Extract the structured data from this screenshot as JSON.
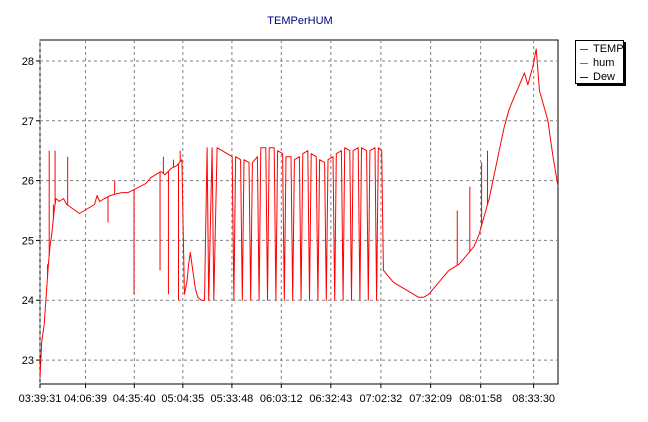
{
  "chart_data": {
    "type": "line",
    "title": "TEMPerHUM",
    "xlabel": "",
    "ylabel": "",
    "x_tick_labels": [
      "03:39:31",
      "04:06:39",
      "04:35:40",
      "05:04:35",
      "05:33:48",
      "06:03:12",
      "06:32:43",
      "07:02:32",
      "07:32:09",
      "08:01:58",
      "08:33:30"
    ],
    "x_range": [
      "03:39:31",
      "08:48:00"
    ],
    "y_ticks": [
      23,
      24,
      25,
      26,
      27,
      28
    ],
    "ylim": [
      22.6,
      28.35
    ],
    "grid": true,
    "legend_position": "right",
    "series": [
      {
        "name": "TEMP",
        "color": "#ff0000",
        "points": [
          [
            "03:39:31",
            22.7
          ],
          [
            "03:40:30",
            23.3
          ],
          [
            "03:42:00",
            23.6
          ],
          [
            "03:43:30",
            24.2
          ],
          [
            "03:44:30",
            24.6
          ],
          [
            "03:45:30",
            24.9
          ],
          [
            "03:46:30",
            25.1
          ],
          [
            "03:48:00",
            25.5
          ],
          [
            "03:49:00",
            25.7
          ],
          [
            "03:51:00",
            25.65
          ],
          [
            "03:53:30",
            25.7
          ],
          [
            "03:55:30",
            25.6
          ],
          [
            "03:58:00",
            25.55
          ],
          [
            "04:00:30",
            25.5
          ],
          [
            "04:03:00",
            25.45
          ],
          [
            "04:06:00",
            25.5
          ],
          [
            "04:09:00",
            25.55
          ],
          [
            "04:12:00",
            25.6
          ],
          [
            "04:13:30",
            25.75
          ],
          [
            "04:15:00",
            25.65
          ],
          [
            "04:18:00",
            25.7
          ],
          [
            "04:21:30",
            25.75
          ],
          [
            "04:25:00",
            25.78
          ],
          [
            "04:28:30",
            25.8
          ],
          [
            "04:32:00",
            25.8
          ],
          [
            "04:35:30",
            25.85
          ],
          [
            "04:39:00",
            25.9
          ],
          [
            "04:42:30",
            25.95
          ],
          [
            "04:45:30",
            26.05
          ],
          [
            "04:48:30",
            26.1
          ],
          [
            "04:51:30",
            26.15
          ],
          [
            "04:54:00",
            26.1
          ],
          [
            "04:57:30",
            26.2
          ],
          [
            "05:01:00",
            26.25
          ],
          [
            "05:04:00",
            26.35
          ],
          [
            "05:05:30",
            24.1
          ],
          [
            "05:07:00",
            24.3
          ],
          [
            "05:08:00",
            24.6
          ],
          [
            "05:09:00",
            24.8
          ],
          [
            "05:10:00",
            24.6
          ],
          [
            "05:11:00",
            24.4
          ],
          [
            "05:12:00",
            24.2
          ],
          [
            "05:13:30",
            24.05
          ],
          [
            "05:15:30",
            24.0
          ],
          [
            "05:17:30",
            24.0
          ],
          [
            "05:19:00",
            26.55
          ],
          [
            "05:20:00",
            24.0
          ],
          [
            "05:22:00",
            26.55
          ],
          [
            "05:23:00",
            24.0
          ],
          [
            "05:25:00",
            26.55
          ],
          [
            "05:28:00",
            26.5
          ],
          [
            "05:31:00",
            26.45
          ],
          [
            "05:34:00",
            26.4
          ],
          [
            "05:35:00",
            24.0
          ],
          [
            "05:36:00",
            26.4
          ],
          [
            "05:39:00",
            26.35
          ],
          [
            "05:40:00",
            24.0
          ],
          [
            "05:41:00",
            26.35
          ],
          [
            "05:44:00",
            26.3
          ],
          [
            "05:45:00",
            24.0
          ],
          [
            "05:46:00",
            26.3
          ],
          [
            "05:49:00",
            26.4
          ],
          [
            "05:50:00",
            24.0
          ],
          [
            "05:51:00",
            26.55
          ],
          [
            "05:54:00",
            26.55
          ],
          [
            "05:55:00",
            24.0
          ],
          [
            "05:56:00",
            26.55
          ],
          [
            "05:59:00",
            26.55
          ],
          [
            "06:00:00",
            24.0
          ],
          [
            "06:01:00",
            26.5
          ],
          [
            "06:04:00",
            26.45
          ],
          [
            "06:05:00",
            24.0
          ],
          [
            "06:06:00",
            26.4
          ],
          [
            "06:09:00",
            26.4
          ],
          [
            "06:10:00",
            24.0
          ],
          [
            "06:11:00",
            26.35
          ],
          [
            "06:14:00",
            26.4
          ],
          [
            "06:15:00",
            24.0
          ],
          [
            "06:16:00",
            26.45
          ],
          [
            "06:19:00",
            26.5
          ],
          [
            "06:20:00",
            24.0
          ],
          [
            "06:21:00",
            26.45
          ],
          [
            "06:24:00",
            26.4
          ],
          [
            "06:25:00",
            24.0
          ],
          [
            "06:26:00",
            26.35
          ],
          [
            "06:29:00",
            26.3
          ],
          [
            "06:30:00",
            24.0
          ],
          [
            "06:31:00",
            26.35
          ],
          [
            "06:34:00",
            26.4
          ],
          [
            "06:35:00",
            24.0
          ],
          [
            "06:36:00",
            26.45
          ],
          [
            "06:39:00",
            26.5
          ],
          [
            "06:40:00",
            24.0
          ],
          [
            "06:41:00",
            26.55
          ],
          [
            "06:44:00",
            26.5
          ],
          [
            "06:45:00",
            24.0
          ],
          [
            "06:46:00",
            26.5
          ],
          [
            "06:49:00",
            26.55
          ],
          [
            "06:50:00",
            24.0
          ],
          [
            "06:51:00",
            26.55
          ],
          [
            "06:54:00",
            26.5
          ],
          [
            "06:55:00",
            24.0
          ],
          [
            "06:56:00",
            26.5
          ],
          [
            "06:59:00",
            26.55
          ],
          [
            "07:00:00",
            24.0
          ],
          [
            "07:01:00",
            26.55
          ],
          [
            "07:03:00",
            26.5
          ],
          [
            "07:04:00",
            24.5
          ],
          [
            "07:07:00",
            24.4
          ],
          [
            "07:10:00",
            24.3
          ],
          [
            "07:13:00",
            24.25
          ],
          [
            "07:16:00",
            24.2
          ],
          [
            "07:19:00",
            24.15
          ],
          [
            "07:22:00",
            24.1
          ],
          [
            "07:25:00",
            24.05
          ],
          [
            "07:28:00",
            24.05
          ],
          [
            "07:31:00",
            24.1
          ],
          [
            "07:34:00",
            24.2
          ],
          [
            "07:37:00",
            24.3
          ],
          [
            "07:40:00",
            24.4
          ],
          [
            "07:43:00",
            24.5
          ],
          [
            "07:46:00",
            24.55
          ],
          [
            "07:49:00",
            24.6
          ],
          [
            "07:52:00",
            24.7
          ],
          [
            "07:55:00",
            24.8
          ],
          [
            "07:58:00",
            24.9
          ],
          [
            "08:01:00",
            25.1
          ],
          [
            "08:04:00",
            25.4
          ],
          [
            "08:07:00",
            25.7
          ],
          [
            "08:10:00",
            26.1
          ],
          [
            "08:13:00",
            26.5
          ],
          [
            "08:16:00",
            26.9
          ],
          [
            "08:19:00",
            27.2
          ],
          [
            "08:22:00",
            27.4
          ],
          [
            "08:25:00",
            27.6
          ],
          [
            "08:28:00",
            27.8
          ],
          [
            "08:30:00",
            27.6
          ],
          [
            "08:33:00",
            27.9
          ],
          [
            "08:35:00",
            28.2
          ],
          [
            "08:37:00",
            27.5
          ],
          [
            "08:39:00",
            27.3
          ],
          [
            "08:42:00",
            27.0
          ],
          [
            "08:45:00",
            26.4
          ],
          [
            "08:48:00",
            25.9
          ]
        ],
        "dropouts": [
          [
            "03:44:00",
            24.6
          ],
          [
            "03:45:00",
            26.5
          ],
          [
            "03:47:30",
            25.6
          ],
          [
            "03:48:30",
            26.5
          ],
          [
            "03:56:00",
            26.4
          ],
          [
            "04:20:00",
            25.3
          ],
          [
            "04:24:00",
            26.0
          ],
          [
            "04:35:30",
            24.1
          ],
          [
            "04:51:00",
            24.5
          ],
          [
            "04:53:00",
            26.4
          ],
          [
            "04:56:00",
            24.1
          ],
          [
            "04:59:00",
            26.35
          ],
          [
            "05:02:00",
            24.0
          ],
          [
            "05:03:00",
            26.5
          ],
          [
            "07:48:00",
            25.5
          ],
          [
            "07:55:30",
            25.9
          ],
          [
            "08:02:30",
            26.3
          ],
          [
            "08:06:00",
            26.5
          ]
        ]
      },
      {
        "name": "hum",
        "color": "#00c000",
        "points": []
      },
      {
        "name": "Dew",
        "color": "#0000ff",
        "points": []
      }
    ]
  }
}
